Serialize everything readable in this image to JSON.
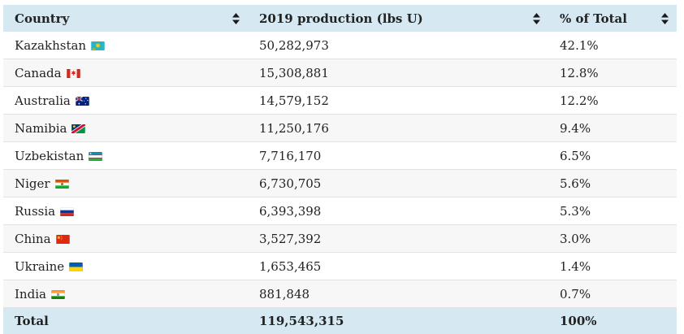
{
  "table": {
    "columns": [
      {
        "label": "Country",
        "sortable": true
      },
      {
        "label": "2019 production (lbs U)",
        "sortable": true
      },
      {
        "label": "% of Total",
        "sortable": true
      }
    ],
    "rows": [
      {
        "country": "Kazakhstan",
        "flag": "kazakhstan",
        "production": "50,282,973",
        "percent": "42.1%"
      },
      {
        "country": "Canada",
        "flag": "canada",
        "production": "15,308,881",
        "percent": "12.8%"
      },
      {
        "country": "Australia",
        "flag": "australia",
        "production": "14,579,152",
        "percent": "12.2%"
      },
      {
        "country": "Namibia",
        "flag": "namibia",
        "production": "11,250,176",
        "percent": "9.4%"
      },
      {
        "country": "Uzbekistan",
        "flag": "uzbekistan",
        "production": "7,716,170",
        "percent": "6.5%"
      },
      {
        "country": "Niger",
        "flag": "niger",
        "production": "6,730,705",
        "percent": "5.6%"
      },
      {
        "country": "Russia",
        "flag": "russia",
        "production": "6,393,398",
        "percent": "5.3%"
      },
      {
        "country": "China",
        "flag": "china",
        "production": "3,527,392",
        "percent": "3.0%"
      },
      {
        "country": "Ukraine",
        "flag": "ukraine",
        "production": "1,653,465",
        "percent": "1.4%"
      },
      {
        "country": "India",
        "flag": "india",
        "production": "881,848",
        "percent": "0.7%"
      }
    ],
    "total": {
      "label": "Total",
      "production": "119,543,315",
      "percent": "100%"
    }
  },
  "icons": {
    "sort": "sort-icon"
  },
  "colors": {
    "header_bg": "#d6e9f2",
    "total_bg": "#d6e9f2",
    "stripe_bg": "#f7f7f7",
    "row_border": "#e2e2e2",
    "text": "#222222",
    "sort_icon": "#1a1a1a"
  }
}
